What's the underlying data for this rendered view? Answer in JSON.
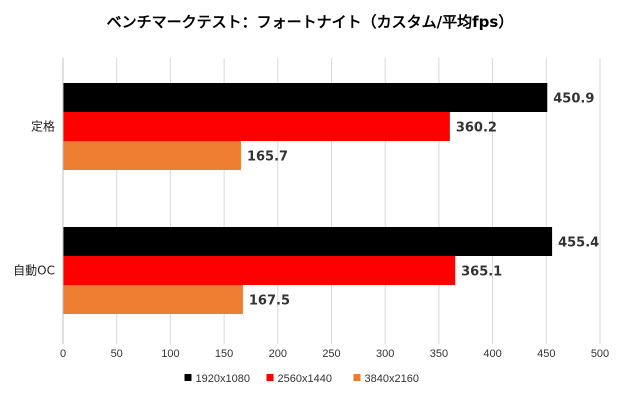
{
  "chart_data": {
    "type": "bar",
    "orientation": "horizontal",
    "title": "ベンチマークテスト：フォートナイト（カスタム/平均fps）",
    "categories": [
      "定格",
      "自動OC"
    ],
    "series": [
      {
        "name": "1920x1080",
        "color": "#000000",
        "values": [
          450.9,
          455.4
        ]
      },
      {
        "name": "2560x1440",
        "color": "#ff0000",
        "values": [
          360.2,
          365.1
        ]
      },
      {
        "name": "3840x2160",
        "color": "#ed7d31",
        "values": [
          165.7,
          167.5
        ]
      }
    ],
    "data_labels": [
      [
        "450.9",
        "360.2",
        "165.7"
      ],
      [
        "455.4",
        "365.1",
        "167.5"
      ]
    ],
    "xlim": [
      0,
      500
    ],
    "xticks": [
      0,
      50,
      100,
      150,
      200,
      250,
      300,
      350,
      400,
      450,
      500
    ],
    "grid": "vertical",
    "legend_position": "bottom",
    "xlabel": "",
    "ylabel": ""
  }
}
